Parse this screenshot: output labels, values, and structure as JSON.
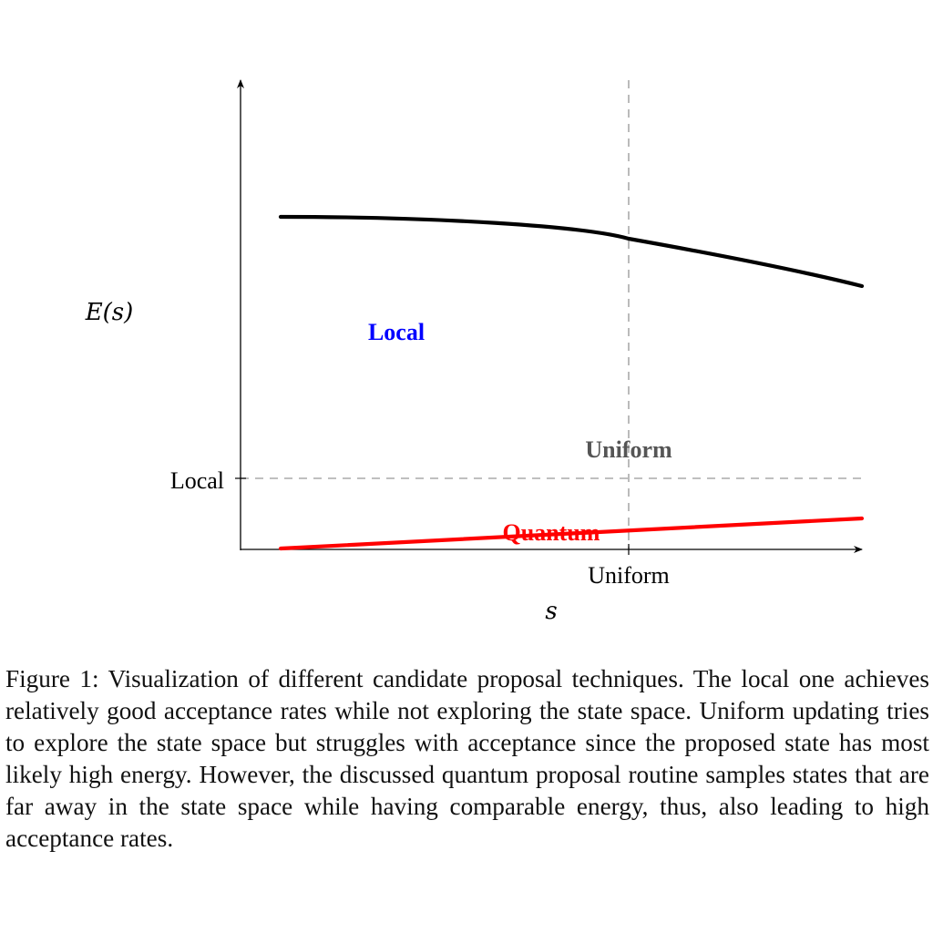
{
  "figure": {
    "y_axis_label": "E(s)",
    "x_axis_label": "s",
    "y_tick_label": "Local",
    "x_tick_label": "Uniform",
    "annotations": {
      "local": "Local",
      "uniform": "Uniform",
      "quantum": "Quantum"
    },
    "colors": {
      "energy_curve": "#000000",
      "quantum_curve": "#ff0000",
      "local_text": "#0000ff",
      "uniform_text": "#555555",
      "guide_lines": "#aaaaaa"
    }
  },
  "caption": {
    "prefix": "Figure 1:",
    "text": "Visualization of different candidate proposal techniques. The local one achieves relatively good acceptance rates while not exploring the state space. Uniform updating tries to explore the state space but struggles with acceptance since the proposed state has most likely high energy. However, the discussed quantum proposal routine samples states that are far away in the state space while having comparable energy, thus, also leading to high acceptance rates."
  }
}
